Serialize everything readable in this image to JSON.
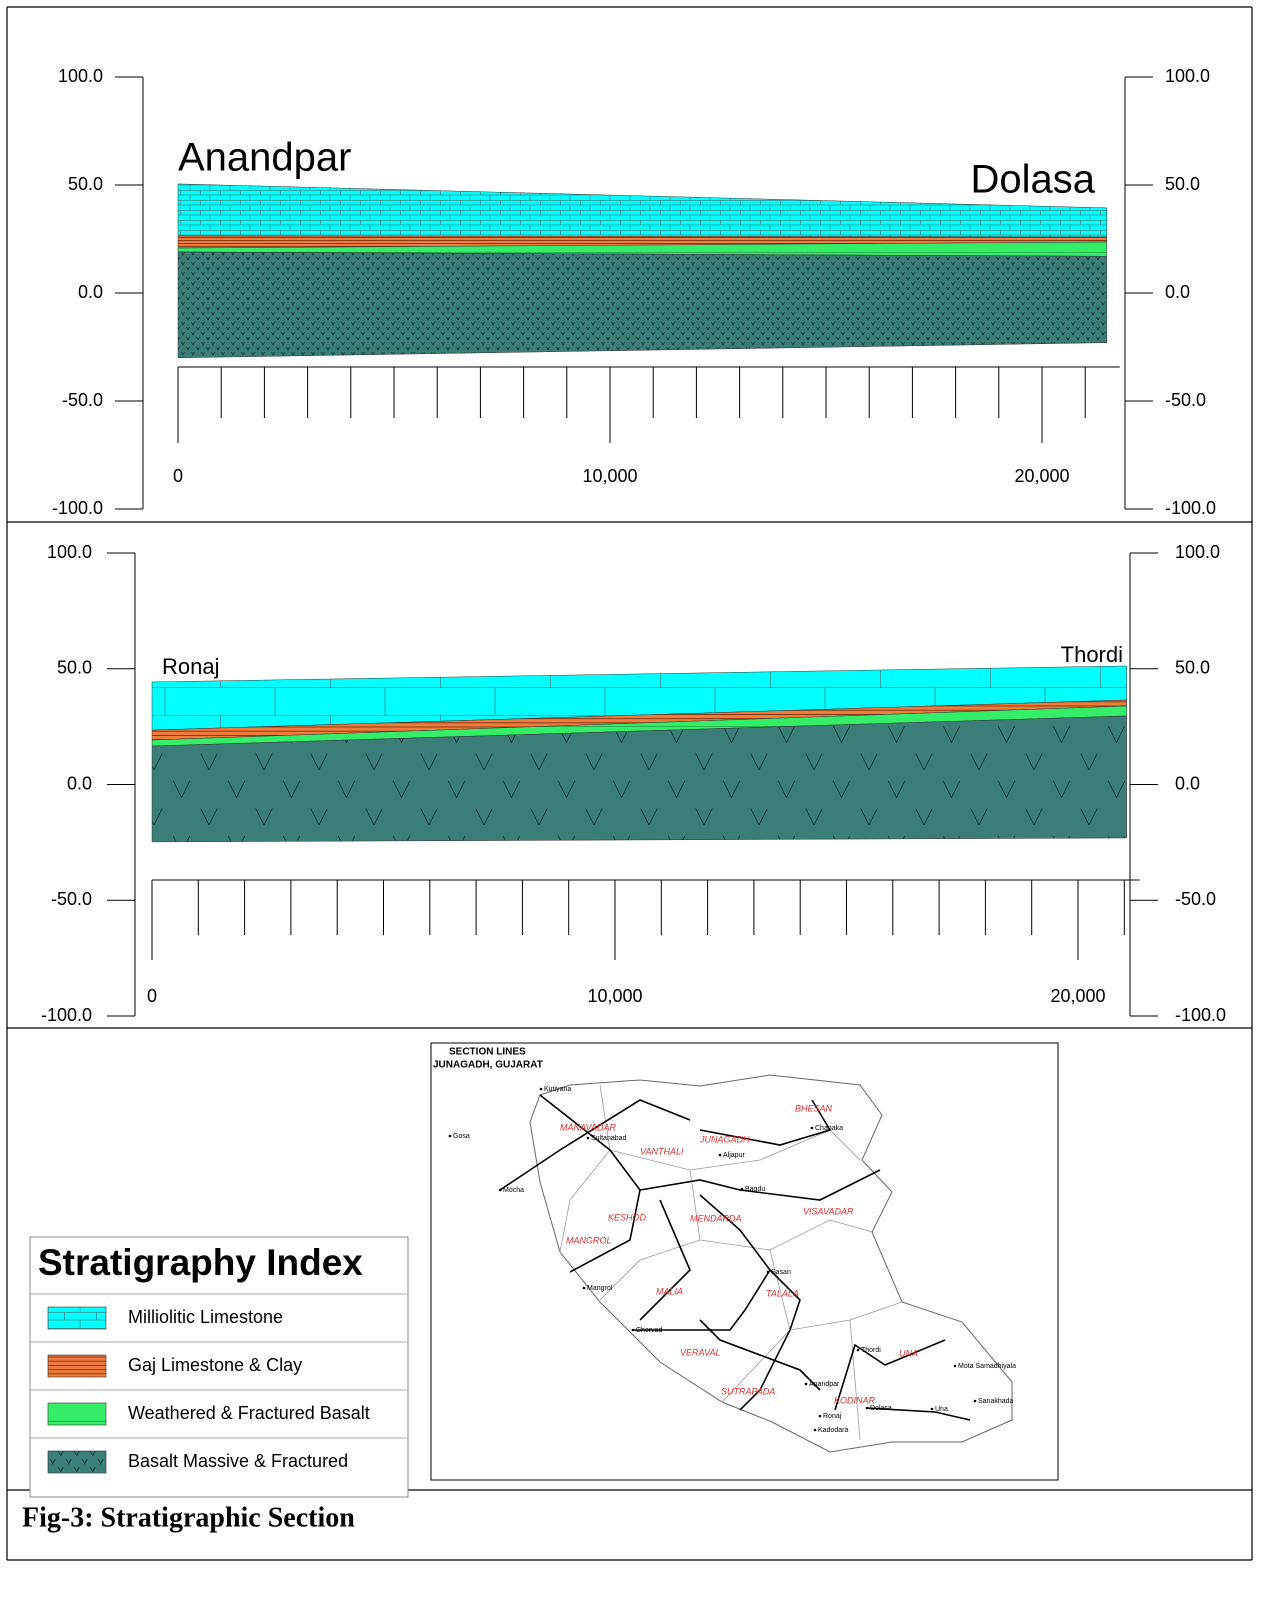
{
  "sections": [
    {
      "left_label": "Anandpar",
      "right_label": "Dolasa",
      "xlim": [
        0,
        21500
      ],
      "ylim": [
        -100,
        100
      ],
      "yticks": [
        {
          "value": -100,
          "label": "-100.0"
        },
        {
          "value": -50,
          "label": "-50.0"
        },
        {
          "value": 0,
          "label": "0.0"
        },
        {
          "value": 50,
          "label": "50.0"
        },
        {
          "value": 100,
          "label": "100.0"
        }
      ],
      "xticks": [
        0,
        {
          "value": 10000,
          "label": "10,000"
        },
        {
          "value": 20000,
          "label": "20,000"
        }
      ],
      "layers": [
        {
          "top": [
            50.5,
            39.4
          ],
          "bottom": [
            26.4,
            26
          ]
        },
        {
          "top": [
            26.4,
            26
          ],
          "bottom": [
            20.8,
            23.6
          ]
        },
        {
          "top": [
            20.8,
            23.6
          ],
          "bottom": [
            19,
            17
          ]
        },
        {
          "top": [
            19,
            17
          ],
          "bottom": [
            -30,
            -23
          ]
        }
      ]
    },
    {
      "left_label": "Ronaj",
      "right_label": "Thordi",
      "xlim": [
        0,
        21050
      ],
      "ylim": [
        -100,
        100
      ],
      "yticks": [
        {
          "value": -100,
          "label": "-100.0"
        },
        {
          "value": -50,
          "label": "-50.0"
        },
        {
          "value": 0,
          "label": "0.0"
        },
        {
          "value": 50,
          "label": "50.0"
        },
        {
          "value": 100,
          "label": "100.0"
        }
      ],
      "xticks": [
        0,
        {
          "value": 10000,
          "label": "10,000"
        },
        {
          "value": 20000,
          "label": "20,000"
        }
      ],
      "layers": [
        {
          "top": [
            44.3,
            51.2
          ],
          "bottom": [
            23.5,
            36.5
          ]
        },
        {
          "top": [
            23.5,
            36.5
          ],
          "bottom": [
            19.2,
            33.9
          ]
        },
        {
          "top": [
            19.2,
            33.9
          ],
          "bottom": [
            16.6,
            29.6
          ]
        },
        {
          "top": [
            16.6,
            29.6
          ],
          "bottom": [
            -24.8,
            -23.1
          ]
        }
      ]
    }
  ],
  "legend": {
    "title": "Stratigraphy Index",
    "items": [
      "Milliolitic Limestone",
      "Gaj Limestone & Clay",
      "Weathered & Fractured Basalt",
      "Basalt Massive & Fractured"
    ]
  },
  "map": {
    "title": "SECTION LINES",
    "subtitle": "JUNAGADH, GUJARAT",
    "zones": [
      "MANAVADAR",
      "VANTHALI",
      "JUNAGADH",
      "BHESAN",
      "KESHOD",
      "MENDARDA",
      "MANGROL",
      "MALIA",
      "TALALA",
      "VISAVADAR",
      "VERAVAL",
      "SUTRAPADA",
      "KODINAR",
      "UNA"
    ],
    "places": [
      "Gosa",
      "Mocha",
      "Kutiyana",
      "Sultanabad",
      "Bagdu",
      "Chorvad",
      "Mangrol",
      "Una",
      "Thordi",
      "Ronaj",
      "Kadodara",
      "Mota Samadhiyala",
      "Sanakhada",
      "Dolasa",
      "Anandpar",
      "Aljapur",
      "Sasan",
      "Chanaka"
    ]
  },
  "caption": "Fig-3: Stratigraphic Section"
}
